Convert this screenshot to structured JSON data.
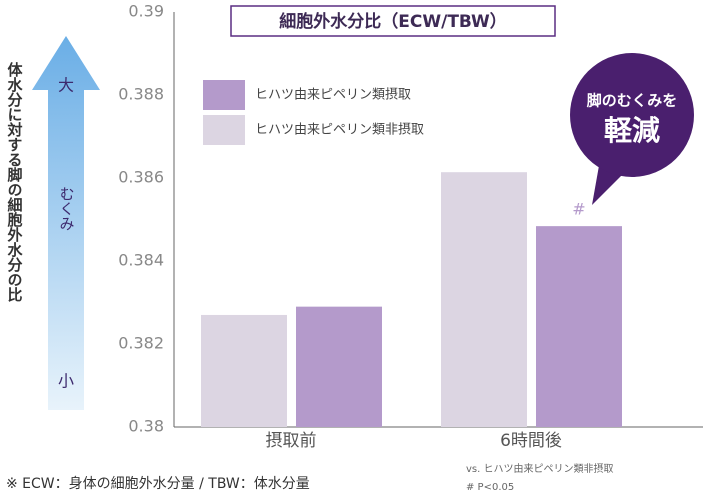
{
  "chart_data": {
    "type": "bar",
    "title": "細胞外水分比（ECW/TBW）",
    "y_axis_label": "体水分に対する脚の細胞外水分の比",
    "arrow_labels": [
      "大",
      "むくみ",
      "小"
    ],
    "categories": [
      "摂取前",
      "6時間後"
    ],
    "series": [
      {
        "name": "ヒハツ由来ピペリン類摂取",
        "color": "#b49acb",
        "values": [
          0.3829,
          0.38484
        ]
      },
      {
        "name": "ヒハツ由来ピペリン類非摂取",
        "color": "#dcd5e2",
        "values": [
          0.3827,
          0.38614
        ]
      }
    ],
    "ylim": [
      0.38,
      0.39
    ],
    "yticks": [
      0.38,
      0.382,
      0.384,
      0.386,
      0.388,
      0.39
    ],
    "grid": false,
    "annotations": {
      "significance_mark": "#",
      "bubble_line1": "脚のむくみを",
      "bubble_line2": "軽減"
    },
    "footnote": "※ ECW：身体の細胞外水分量 / TBW：体水分量",
    "note_vs": "vs. ヒハツ由来ピペリン類非摂取",
    "note_p": "# P<0.05"
  }
}
